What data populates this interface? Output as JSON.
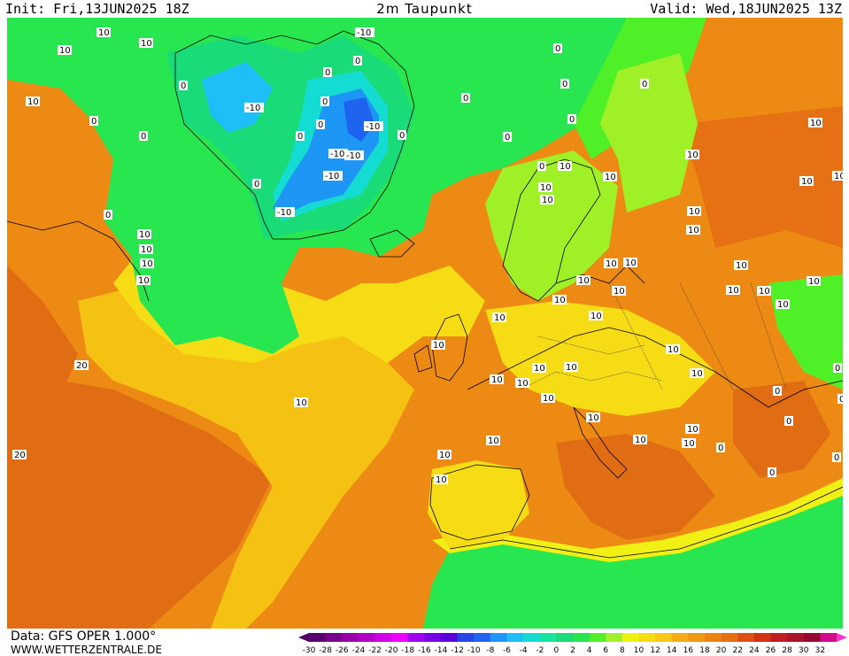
{
  "header": {
    "init": "Init: Fri,13JUN2025 18Z",
    "title": "2m Taupunkt",
    "valid": "Valid: Wed,18JUN2025 13Z"
  },
  "footer": {
    "data_source": "Data: GFS OPER 1.000°",
    "website": "WWW.WETTERZENTRALE.DE"
  },
  "legend": {
    "min_arrow_color": "#4b0066",
    "max_arrow_color": "#ff33cc",
    "items": [
      {
        "label": "-30",
        "color": "#55006e"
      },
      {
        "label": "-28",
        "color": "#78008c"
      },
      {
        "label": "-26",
        "color": "#9a00aa"
      },
      {
        "label": "-24",
        "color": "#b400c6"
      },
      {
        "label": "-22",
        "color": "#d200e6"
      },
      {
        "label": "-20",
        "color": "#ee00ff"
      },
      {
        "label": "-18",
        "color": "#a000f0"
      },
      {
        "label": "-16",
        "color": "#7800e6"
      },
      {
        "label": "-14",
        "color": "#5a00dc"
      },
      {
        "label": "-12",
        "color": "#2846e6"
      },
      {
        "label": "-10",
        "color": "#1e64f0"
      },
      {
        "label": "-8",
        "color": "#1e96f5"
      },
      {
        "label": "-6",
        "color": "#1ebef8"
      },
      {
        "label": "-4",
        "color": "#14dcd2"
      },
      {
        "label": "-2",
        "color": "#14e6a0"
      },
      {
        "label": "0",
        "color": "#19dc78"
      },
      {
        "label": "2",
        "color": "#28e650"
      },
      {
        "label": "4",
        "color": "#50f028"
      },
      {
        "label": "6",
        "color": "#a0f028"
      },
      {
        "label": "8",
        "color": "#f0f014"
      },
      {
        "label": "10",
        "color": "#f5dc14"
      },
      {
        "label": "12",
        "color": "#f5c814"
      },
      {
        "label": "14",
        "color": "#f5aa14"
      },
      {
        "label": "16",
        "color": "#f09614"
      },
      {
        "label": "18",
        "color": "#eb8214"
      },
      {
        "label": "20",
        "color": "#e66e14"
      },
      {
        "label": "22",
        "color": "#dc5014"
      },
      {
        "label": "24",
        "color": "#d23214"
      },
      {
        "label": "26",
        "color": "#be1e1e"
      },
      {
        "label": "28",
        "color": "#aa1428"
      },
      {
        "label": "30",
        "color": "#960a32"
      },
      {
        "label": "32",
        "color": "#d20a8c"
      }
    ]
  },
  "map_labels": [
    {
      "text": "10"
    },
    {
      "text": "10"
    },
    {
      "text": "10"
    },
    {
      "text": "10"
    },
    {
      "text": "0"
    },
    {
      "text": "0"
    },
    {
      "text": "0"
    },
    {
      "text": "0"
    },
    {
      "text": "-10"
    },
    {
      "text": "-10"
    },
    {
      "text": "-10"
    },
    {
      "text": "-10"
    },
    {
      "text": "-10"
    },
    {
      "text": "-10"
    },
    {
      "text": "-10"
    },
    {
      "text": "0"
    },
    {
      "text": "0"
    },
    {
      "text": "0"
    },
    {
      "text": "0"
    },
    {
      "text": "0"
    },
    {
      "text": "0"
    },
    {
      "text": "0"
    },
    {
      "text": "0"
    },
    {
      "text": "0"
    },
    {
      "text": "0"
    },
    {
      "text": "10"
    },
    {
      "text": "10"
    },
    {
      "text": "10"
    },
    {
      "text": "10"
    },
    {
      "text": "10"
    },
    {
      "text": "10"
    },
    {
      "text": "10"
    },
    {
      "text": "10"
    },
    {
      "text": "10"
    },
    {
      "text": "10"
    },
    {
      "text": "10"
    },
    {
      "text": "10"
    },
    {
      "text": "10"
    },
    {
      "text": "10"
    },
    {
      "text": "10"
    },
    {
      "text": "10"
    },
    {
      "text": "10"
    },
    {
      "text": "10"
    },
    {
      "text": "10"
    },
    {
      "text": "10"
    },
    {
      "text": "10"
    },
    {
      "text": "10"
    },
    {
      "text": "10"
    },
    {
      "text": "10"
    },
    {
      "text": "10"
    },
    {
      "text": "10"
    },
    {
      "text": "10"
    },
    {
      "text": "20"
    },
    {
      "text": "20"
    },
    {
      "text": "10"
    },
    {
      "text": "10"
    },
    {
      "text": "10"
    },
    {
      "text": "10"
    },
    {
      "text": "10"
    },
    {
      "text": "10"
    },
    {
      "text": "10"
    },
    {
      "text": "0"
    },
    {
      "text": "0"
    },
    {
      "text": "0"
    },
    {
      "text": "0"
    },
    {
      "text": "0"
    },
    {
      "text": "0"
    },
    {
      "text": "0"
    },
    {
      "text": "10"
    },
    {
      "text": "10"
    },
    {
      "text": "10"
    },
    {
      "text": "10"
    },
    {
      "text": "10"
    },
    {
      "text": "10"
    },
    {
      "text": "0"
    },
    {
      "text": "0"
    },
    {
      "text": "0"
    },
    {
      "text": "0"
    },
    {
      "text": "10"
    },
    {
      "text": "10"
    }
  ]
}
